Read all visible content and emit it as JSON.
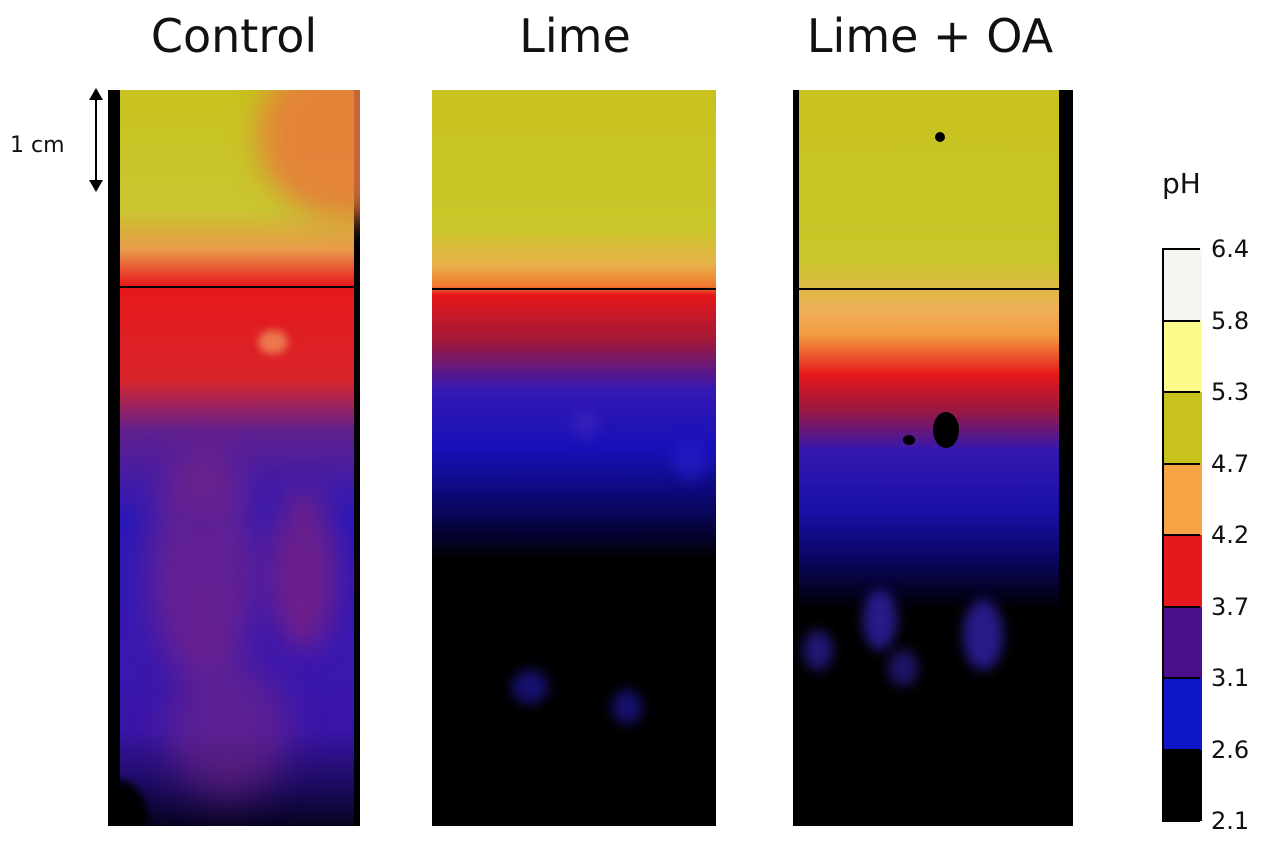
{
  "panels": [
    {
      "title": "Control"
    },
    {
      "title": "Lime"
    },
    {
      "title": "Lime + OA"
    }
  ],
  "scale_bar": {
    "label": "1 cm"
  },
  "legend": {
    "title": "pH",
    "values": [
      "6.4",
      "5.8",
      "5.3",
      "4.7",
      "4.2",
      "3.7",
      "3.1",
      "2.6",
      "2.1"
    ],
    "colors": [
      "#f4f6f0",
      "#fdfb8a",
      "#c8c21e",
      "#f6a446",
      "#e6181b",
      "#4b0f8c",
      "#0f15c8",
      "#000000"
    ]
  }
}
